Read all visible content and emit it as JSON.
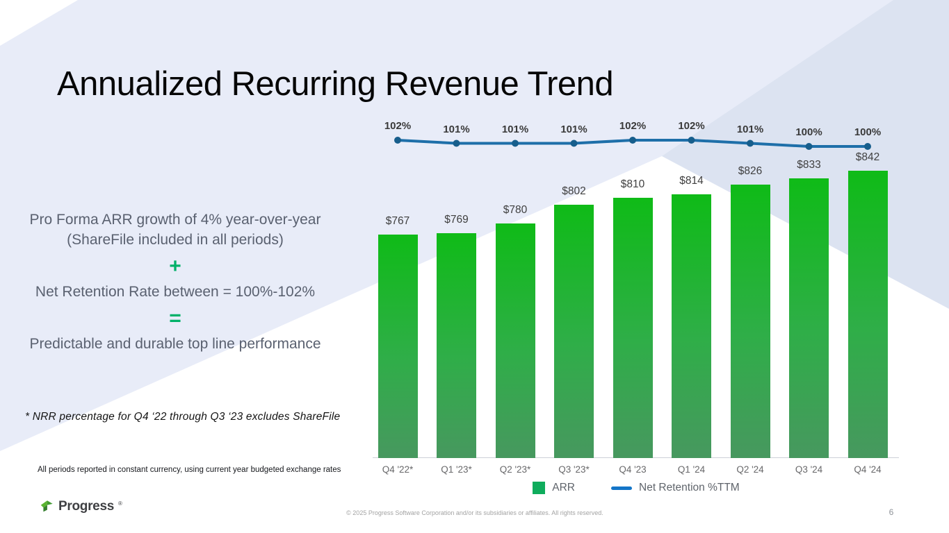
{
  "slide": {
    "title": "Annualized Recurring Revenue Trend",
    "footnote": "* NRR percentage for Q4 ‘22 through Q3 ‘23 excludes ShareFile",
    "disclaimer": "All periods reported in constant currency, using current year budgeted exchange rates",
    "copyright": "© 2025 Progress Software Corporation and/or its subsidiaries or affiliates. All rights reserved.",
    "page_number": "6",
    "logo_text": "Progress",
    "logo_mark": "®"
  },
  "summary": {
    "line1": "Pro Forma ARR growth of 4% year-over-year (ShareFile included in all periods)",
    "plus_sign": "+",
    "line2": "Net Retention Rate between = 100%-102%",
    "equals_sign": "=",
    "line3": "Predictable and durable top line performance"
  },
  "chart_data": {
    "type": "bar",
    "subtype": "combo bar + line",
    "categories": [
      "Q4 '22*",
      "Q1 '23*",
      "Q2 '23*",
      "Q3 '23*",
      "Q4 '23",
      "Q1 '24",
      "Q2 '24",
      "Q3 '24",
      "Q4 '24"
    ],
    "series": [
      {
        "name": "ARR",
        "chart_type": "bar",
        "unit": "$ millions",
        "values": [
          767,
          769,
          780,
          802,
          810,
          814,
          826,
          833,
          842
        ],
        "labels": [
          "$767",
          "$769",
          "$780",
          "$802",
          "$810",
          "$814",
          "$826",
          "$833",
          "$842"
        ]
      },
      {
        "name": "Net Retention %TTM",
        "chart_type": "line",
        "unit": "%",
        "values": [
          102,
          101,
          101,
          101,
          102,
          102,
          101,
          100,
          100
        ],
        "labels": [
          "102%",
          "101%",
          "101%",
          "101%",
          "102%",
          "102%",
          "101%",
          "100%",
          "100%"
        ]
      }
    ],
    "legend": [
      {
        "label": "ARR"
      },
      {
        "label": "Net Retention %TTM"
      }
    ],
    "legend_position": "bottom",
    "grid": false,
    "y_axis_visible": false,
    "data_labels": true
  },
  "colors": {
    "accent_green": "#00B169",
    "bar_gradient_top": "#0FBB17",
    "bar_gradient_mid": "#2FAE48",
    "bar_gradient_bottom": "#47985F",
    "line_blue": "#1E6FA9",
    "marker_blue": "#175E8C",
    "legend_green": "#0FAC5C",
    "legend_blue": "#1375C8",
    "background_lavender": "#E8ECF8",
    "background_wedge": "#DCE3F1"
  }
}
